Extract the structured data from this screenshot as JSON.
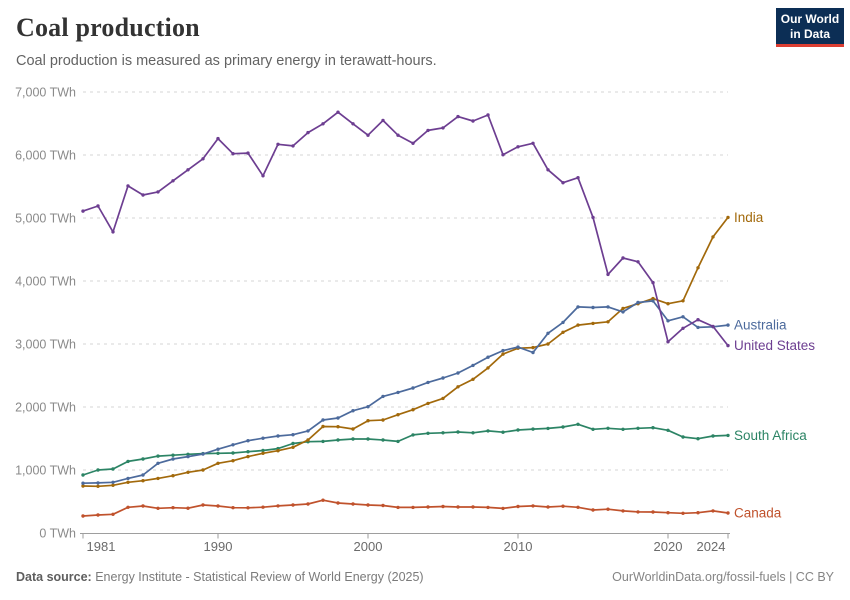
{
  "header": {
    "title": "Coal production",
    "subtitle": "Coal production is measured as primary energy in terawatt-hours."
  },
  "logo": {
    "line1": "Our World",
    "line2": "in Data",
    "bg_color": "#0C2E55",
    "bar_color": "#DC3E32"
  },
  "chart_data": {
    "type": "line",
    "title": "Coal production",
    "unit": "TWh",
    "xlabel": "",
    "ylabel": "",
    "ylim": [
      0,
      7000
    ],
    "ytick_step": 1000,
    "ytick_labels": [
      "0 TWh",
      "1,000 TWh",
      "2,000 TWh",
      "3,000 TWh",
      "4,000 TWh",
      "5,000 TWh",
      "6,000 TWh",
      "7,000 TWh"
    ],
    "xticks": [
      1981,
      1990,
      2000,
      2010,
      2020,
      2024
    ],
    "grid": "horizontal-dashed",
    "legend_position": "line-end-labels-right",
    "markers": true,
    "years": [
      1981,
      1982,
      1983,
      1984,
      1985,
      1986,
      1987,
      1988,
      1989,
      1990,
      1991,
      1992,
      1993,
      1994,
      1995,
      1996,
      1997,
      1998,
      1999,
      2000,
      2001,
      2002,
      2003,
      2004,
      2005,
      2006,
      2007,
      2008,
      2009,
      2010,
      2011,
      2012,
      2013,
      2014,
      2015,
      2016,
      2017,
      2018,
      2019,
      2020,
      2021,
      2022,
      2023,
      2024
    ],
    "series": [
      {
        "name": "India",
        "color": "#A2690B",
        "values": [
          746,
          741,
          757,
          804,
          830,
          867,
          910,
          963,
          1000,
          1106,
          1148,
          1212,
          1265,
          1307,
          1360,
          1476,
          1690,
          1687,
          1651,
          1783,
          1794,
          1878,
          1957,
          2057,
          2136,
          2320,
          2440,
          2620,
          2840,
          2933,
          2943,
          3000,
          3185,
          3300,
          3327,
          3352,
          3565,
          3640,
          3720,
          3640,
          3686,
          4210,
          4700,
          5010
        ]
      },
      {
        "name": "Australia",
        "color": "#4C6A9C",
        "values": [
          790,
          795,
          805,
          867,
          921,
          1106,
          1175,
          1212,
          1254,
          1330,
          1400,
          1465,
          1505,
          1540,
          1560,
          1620,
          1794,
          1825,
          1941,
          2005,
          2168,
          2232,
          2302,
          2391,
          2460,
          2540,
          2660,
          2790,
          2895,
          2950,
          2865,
          3170,
          3343,
          3589,
          3580,
          3589,
          3510,
          3658,
          3684,
          3368,
          3431,
          3263,
          3273,
          3300
        ]
      },
      {
        "name": "United States",
        "color": "#6D3E91",
        "values": [
          5110,
          5190,
          4780,
          5510,
          5365,
          5415,
          5590,
          5765,
          5940,
          6260,
          6020,
          6030,
          5670,
          6170,
          6145,
          6355,
          6495,
          6680,
          6495,
          6315,
          6550,
          6315,
          6185,
          6390,
          6430,
          6610,
          6540,
          6635,
          6005,
          6130,
          6185,
          5765,
          5560,
          5640,
          5010,
          4105,
          4365,
          4305,
          3975,
          3035,
          3250,
          3385,
          3280,
          2975
        ]
      },
      {
        "name": "South Africa",
        "color": "#2C8465",
        "values": [
          920,
          1000,
          1016,
          1137,
          1175,
          1220,
          1235,
          1250,
          1260,
          1265,
          1270,
          1290,
          1310,
          1340,
          1420,
          1449,
          1454,
          1476,
          1492,
          1492,
          1476,
          1454,
          1557,
          1583,
          1590,
          1603,
          1590,
          1620,
          1600,
          1635,
          1650,
          1660,
          1683,
          1725,
          1646,
          1662,
          1646,
          1662,
          1671,
          1630,
          1524,
          1497,
          1540,
          1550
        ]
      },
      {
        "name": "Canada",
        "color": "#C0522C",
        "values": [
          270,
          286,
          297,
          408,
          428,
          392,
          402,
          393,
          444,
          429,
          402,
          400,
          410,
          430,
          445,
          460,
          520,
          476,
          460,
          444,
          436,
          406,
          406,
          413,
          420,
          413,
          413,
          406,
          390,
          420,
          430,
          413,
          426,
          408,
          365,
          377,
          350,
          335,
          334,
          323,
          313,
          323,
          350,
          318
        ]
      }
    ],
    "draw_order": [
      "Canada",
      "South Africa",
      "India",
      "Australia",
      "United States"
    ]
  },
  "footer": {
    "source_label": "Data source:",
    "source_text": " Energy Institute - Statistical Review of World Energy (2025)",
    "right_text": "OurWorldinData.org/fossil-fuels | CC BY"
  }
}
